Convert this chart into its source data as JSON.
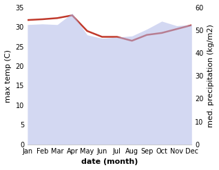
{
  "months": [
    "Jan",
    "Feb",
    "Mar",
    "Apr",
    "May",
    "Jun",
    "Jul",
    "Aug",
    "Sep",
    "Oct",
    "Nov",
    "Dec"
  ],
  "month_indices": [
    0,
    1,
    2,
    3,
    4,
    5,
    6,
    7,
    8,
    9,
    10,
    11
  ],
  "temperature": [
    31.8,
    32.0,
    32.3,
    33.0,
    29.0,
    27.5,
    27.5,
    26.5,
    28.0,
    28.5,
    29.5,
    30.5
  ],
  "precipitation": [
    52.5,
    52.8,
    52.5,
    57.5,
    48.0,
    46.5,
    47.0,
    47.5,
    50.5,
    54.0,
    52.0,
    52.5
  ],
  "temp_color": "#c0392b",
  "precip_color": "#b0b8e8",
  "precip_fill_alpha": 0.55,
  "ylabel_left": "max temp (C)",
  "ylabel_right": "med. precipitation (kg/m2)",
  "xlabel": "date (month)",
  "ylim_left": [
    0,
    35
  ],
  "ylim_right": [
    0,
    60
  ],
  "yticks_left": [
    0,
    5,
    10,
    15,
    20,
    25,
    30,
    35
  ],
  "yticks_right": [
    0,
    10,
    20,
    30,
    40,
    50,
    60
  ],
  "background_color": "#ffffff",
  "temp_linewidth": 1.8,
  "label_fontsize": 8,
  "tick_fontsize": 7
}
